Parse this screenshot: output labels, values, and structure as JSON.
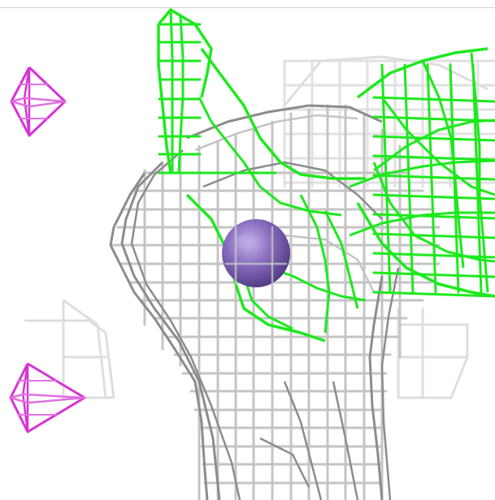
{
  "scene": {
    "background": "#ffffff",
    "colors": {
      "gray_mesh": "#8c8c8c",
      "gray_mesh_light": "#c4c4c4",
      "gray_mesh_faint": "#dedede",
      "green_mesh": "#1de91d",
      "magenta_marker": "#d633d6",
      "magenta_marker_light": "#e070e0",
      "atom_sphere": "#7a5fb0",
      "atom_highlight": "#b7a6e0"
    },
    "objects": [
      {
        "name": "gray-density-mesh",
        "kind": "wireframe mesh",
        "color": "gray_mesh"
      },
      {
        "name": "green-density-mesh",
        "kind": "wireframe mesh",
        "color": "green_mesh"
      },
      {
        "name": "faint-density-mesh",
        "kind": "wireframe mesh",
        "color": "gray_mesh_faint"
      },
      {
        "name": "purple-atom-sphere",
        "kind": "sphere",
        "color": "atom_sphere"
      },
      {
        "name": "magenta-marker-upper",
        "kind": "octahedron",
        "color": "magenta_marker"
      },
      {
        "name": "magenta-marker-lower",
        "kind": "octahedron",
        "color": "magenta_marker"
      }
    ]
  }
}
